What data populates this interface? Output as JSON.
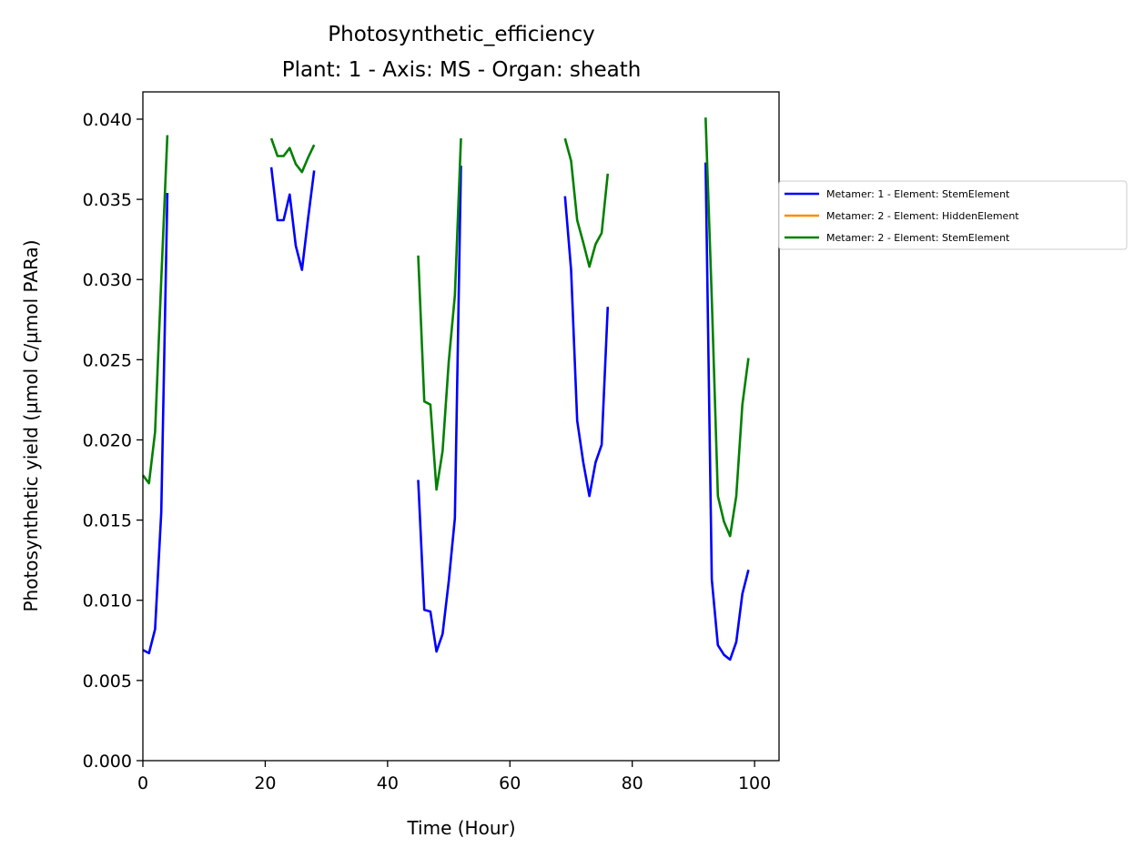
{
  "chart_data": {
    "type": "line",
    "title": "Photosynthetic_efficiency",
    "subtitle": "Plant: 1 - Axis: MS - Organ: sheath",
    "xlabel": "Time (Hour)",
    "ylabel": "Photosynthetic yield (µmol C/µmol PARa)",
    "xlim": [
      0,
      104
    ],
    "ylim": [
      0,
      0.0417
    ],
    "xticks": [
      0,
      20,
      40,
      60,
      80,
      100
    ],
    "xtick_labels": [
      "0",
      "20",
      "40",
      "60",
      "80",
      "100"
    ],
    "yticks": [
      0,
      0.005,
      0.01,
      0.015,
      0.02,
      0.025,
      0.03,
      0.035,
      0.04
    ],
    "ytick_labels": [
      "0.000",
      "0.005",
      "0.010",
      "0.015",
      "0.020",
      "0.025",
      "0.030",
      "0.035",
      "0.040"
    ],
    "grid": false,
    "legend_position": "outside-right",
    "series": [
      {
        "name": "Metamer: 1 - Element: StemElement",
        "color": "#0000ff",
        "segments": [
          [
            [
              0,
              0.0069
            ],
            [
              1,
              0.0067
            ],
            [
              2,
              0.0082
            ],
            [
              3,
              0.0155
            ],
            [
              4,
              0.0354
            ]
          ],
          [
            [
              21,
              0.037
            ],
            [
              22,
              0.0337
            ],
            [
              23,
              0.0337
            ],
            [
              24,
              0.0353
            ],
            [
              25,
              0.0321
            ],
            [
              26,
              0.0306
            ],
            [
              27,
              0.0338
            ],
            [
              28,
              0.0368
            ]
          ],
          [
            [
              45,
              0.0175
            ],
            [
              46,
              0.0094
            ],
            [
              47,
              0.0093
            ],
            [
              48,
              0.0068
            ],
            [
              49,
              0.0079
            ],
            [
              50,
              0.0112
            ],
            [
              51,
              0.0151
            ],
            [
              52,
              0.0371
            ]
          ],
          [
            [
              69,
              0.0352
            ],
            [
              70,
              0.0306
            ],
            [
              71,
              0.0212
            ],
            [
              72,
              0.0186
            ],
            [
              73,
              0.0165
            ],
            [
              74,
              0.0186
            ],
            [
              75,
              0.0197
            ],
            [
              76,
              0.0283
            ]
          ],
          [
            [
              92,
              0.0373
            ],
            [
              93,
              0.0113
            ],
            [
              94,
              0.0072
            ],
            [
              95,
              0.0066
            ],
            [
              96,
              0.0063
            ],
            [
              97,
              0.0074
            ],
            [
              98,
              0.0104
            ],
            [
              99,
              0.0119
            ]
          ]
        ]
      },
      {
        "name": "Metamer: 2 - Element: HiddenElement",
        "color": "#ff8c00",
        "segments": []
      },
      {
        "name": "Metamer: 2 - Element: StemElement",
        "color": "#008000",
        "segments": [
          [
            [
              0,
              0.0178
            ],
            [
              1,
              0.0173
            ],
            [
              2,
              0.0205
            ],
            [
              3,
              0.03
            ],
            [
              4,
              0.039
            ]
          ],
          [
            [
              21,
              0.0388
            ],
            [
              22,
              0.0377
            ],
            [
              23,
              0.0377
            ],
            [
              24,
              0.0382
            ],
            [
              25,
              0.0372
            ],
            [
              26,
              0.0367
            ],
            [
              27,
              0.0376
            ],
            [
              28,
              0.0384
            ]
          ],
          [
            [
              45,
              0.0315
            ],
            [
              46,
              0.0224
            ],
            [
              47,
              0.0222
            ],
            [
              48,
              0.0169
            ],
            [
              49,
              0.0193
            ],
            [
              50,
              0.0249
            ],
            [
              51,
              0.029
            ],
            [
              52,
              0.0388
            ]
          ],
          [
            [
              69,
              0.0388
            ],
            [
              70,
              0.0374
            ],
            [
              71,
              0.0337
            ],
            [
              72,
              0.0323
            ],
            [
              73,
              0.0308
            ],
            [
              74,
              0.0322
            ],
            [
              75,
              0.0329
            ],
            [
              76,
              0.0366
            ]
          ],
          [
            [
              92,
              0.0401
            ],
            [
              93,
              0.0288
            ],
            [
              94,
              0.0165
            ],
            [
              95,
              0.0149
            ],
            [
              96,
              0.014
            ],
            [
              97,
              0.0165
            ],
            [
              98,
              0.0222
            ],
            [
              99,
              0.0251
            ]
          ]
        ]
      }
    ]
  }
}
